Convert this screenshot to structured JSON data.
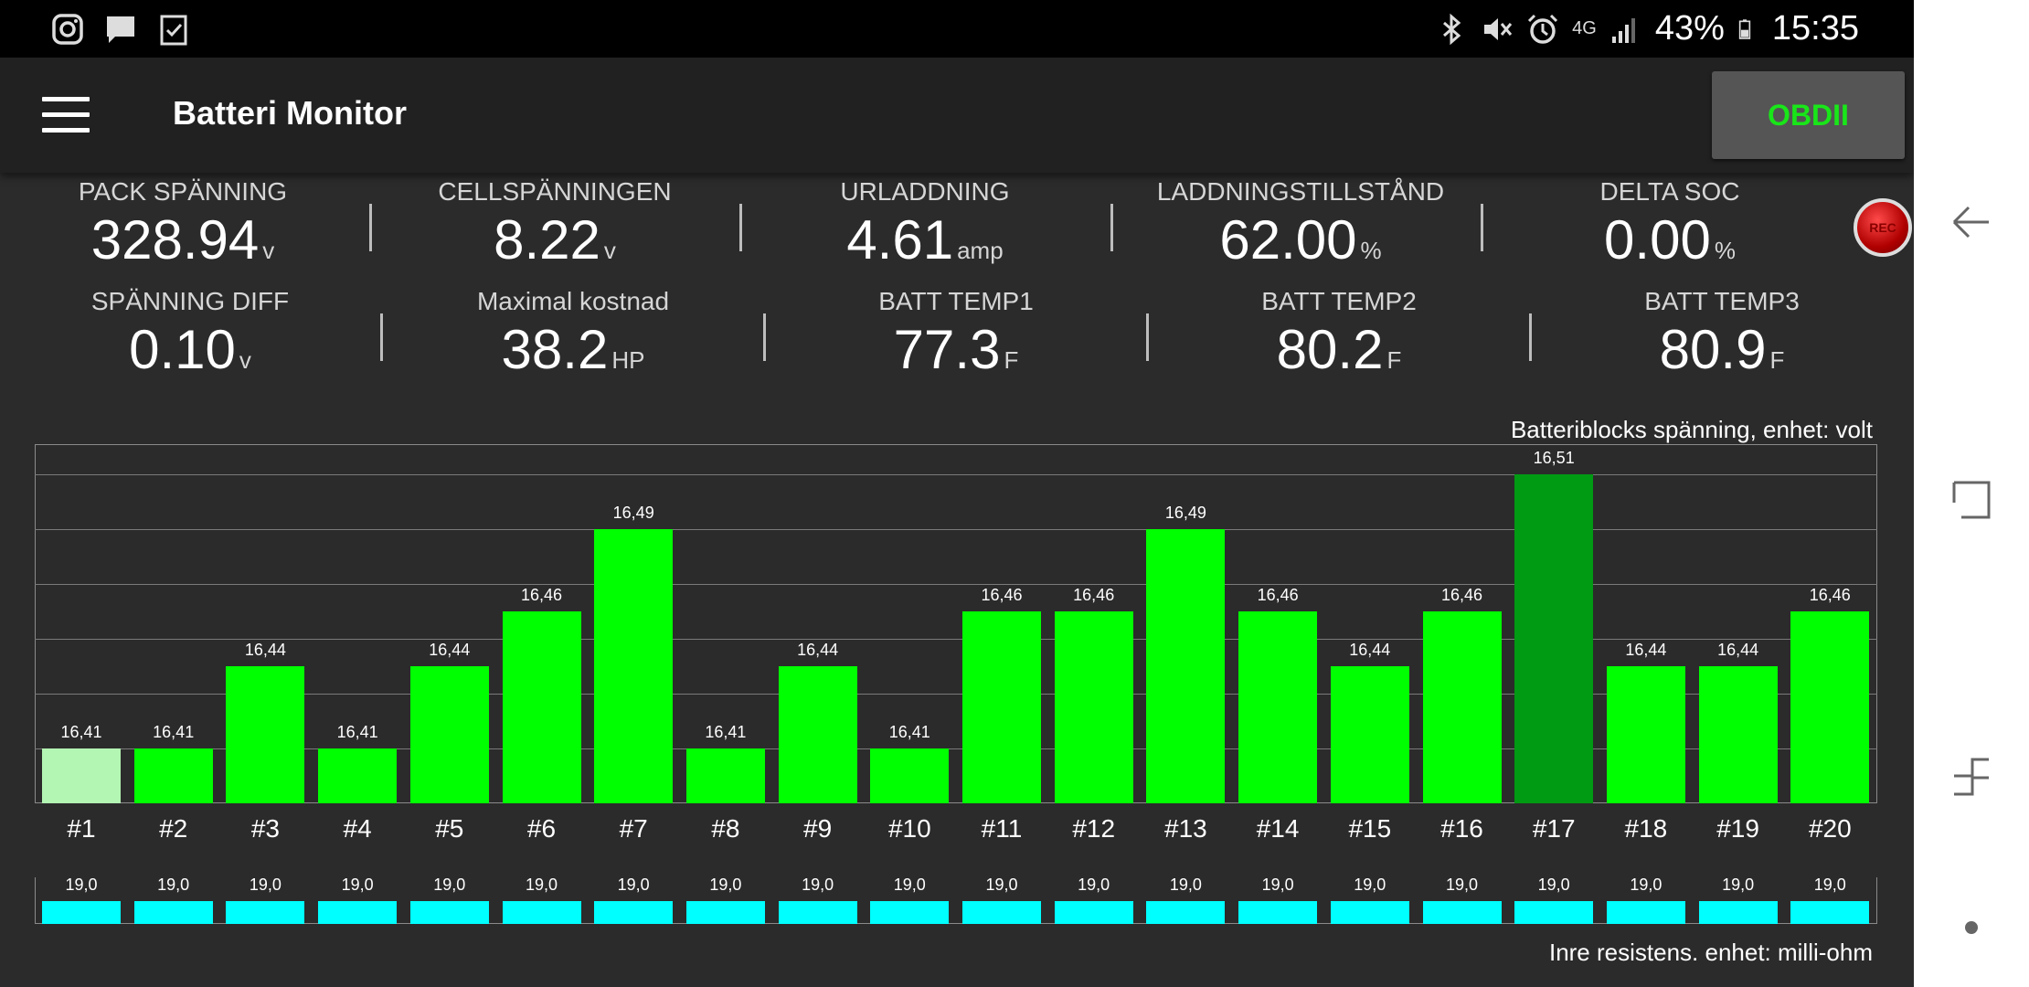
{
  "status_bar": {
    "battery": "43%",
    "time": "15:35",
    "network": "4G",
    "icons_left": [
      "instagram-icon",
      "message-icon",
      "clipboard-check-icon"
    ],
    "icons_right": [
      "bluetooth-icon",
      "mute-icon",
      "alarm-icon",
      "signal-icon",
      "battery-icon"
    ]
  },
  "app_bar": {
    "title": "Batteri Monitor",
    "obd_label": "OBDII"
  },
  "metrics_row1": [
    {
      "label": "PACK SPÄNNING",
      "value": "328.94",
      "unit": "v"
    },
    {
      "label": "CELLSPÄNNINGEN",
      "value": "8.22",
      "unit": "v"
    },
    {
      "label": "URLADDNING",
      "value": "4.61",
      "unit": "amp"
    },
    {
      "label": "LADDNINGSTILLSTÅND",
      "value": "62.00",
      "unit": "%"
    },
    {
      "label": "DELTA SOC",
      "value": "0.00",
      "unit": "%"
    }
  ],
  "metrics_row2": [
    {
      "label": "SPÄNNING DIFF",
      "value": "0.10",
      "unit": "v"
    },
    {
      "label": "Maximal kostnad",
      "value": "38.2",
      "unit": "HP"
    },
    {
      "label": "BATT TEMP1",
      "value": "77.3",
      "unit": "F"
    },
    {
      "label": "BATT TEMP2",
      "value": "80.2",
      "unit": "F"
    },
    {
      "label": "BATT TEMP3",
      "value": "80.9",
      "unit": "F"
    }
  ],
  "rec_label": "REC",
  "colors": {
    "bar_normal": "#00ff00",
    "bar_min": "#b3f5b3",
    "bar_max": "#009a13",
    "resistance": "#00ffff",
    "obd_text": "#19e619"
  },
  "chart_data": [
    {
      "type": "bar",
      "title": "Batteriblocks spänning, enhet: volt",
      "categories": [
        "#1",
        "#2",
        "#3",
        "#4",
        "#5",
        "#6",
        "#7",
        "#8",
        "#9",
        "#10",
        "#11",
        "#12",
        "#13",
        "#14",
        "#15",
        "#16",
        "#17",
        "#18",
        "#19",
        "#20"
      ],
      "values": [
        16.41,
        16.41,
        16.44,
        16.41,
        16.44,
        16.46,
        16.49,
        16.41,
        16.44,
        16.41,
        16.46,
        16.46,
        16.49,
        16.46,
        16.44,
        16.46,
        16.51,
        16.44,
        16.44,
        16.46
      ],
      "value_labels": [
        "16,41",
        "16,41",
        "16,44",
        "16,41",
        "16,44",
        "16,46",
        "16,49",
        "16,41",
        "16,44",
        "16,41",
        "16,46",
        "16,46",
        "16,49",
        "16,46",
        "16,44",
        "16,46",
        "16,51",
        "16,44",
        "16,44",
        "16,46"
      ],
      "ylim": [
        16.39,
        16.51
      ],
      "grid": true,
      "highlight_min_index": 0,
      "highlight_max_index": 16
    },
    {
      "type": "bar",
      "title": "Inre resistens. enhet: milli-ohm",
      "categories": [
        "#1",
        "#2",
        "#3",
        "#4",
        "#5",
        "#6",
        "#7",
        "#8",
        "#9",
        "#10",
        "#11",
        "#12",
        "#13",
        "#14",
        "#15",
        "#16",
        "#17",
        "#18",
        "#19",
        "#20"
      ],
      "values": [
        19.0,
        19.0,
        19.0,
        19.0,
        19.0,
        19.0,
        19.0,
        19.0,
        19.0,
        19.0,
        19.0,
        19.0,
        19.0,
        19.0,
        19.0,
        19.0,
        19.0,
        19.0,
        19.0,
        19.0
      ],
      "value_labels": [
        "19,0",
        "19,0",
        "19,0",
        "19,0",
        "19,0",
        "19,0",
        "19,0",
        "19,0",
        "19,0",
        "19,0",
        "19,0",
        "19,0",
        "19,0",
        "19,0",
        "19,0",
        "19,0",
        "19,0",
        "19,0",
        "19,0",
        "19,0"
      ],
      "ylim": [
        0,
        19.0
      ]
    }
  ]
}
